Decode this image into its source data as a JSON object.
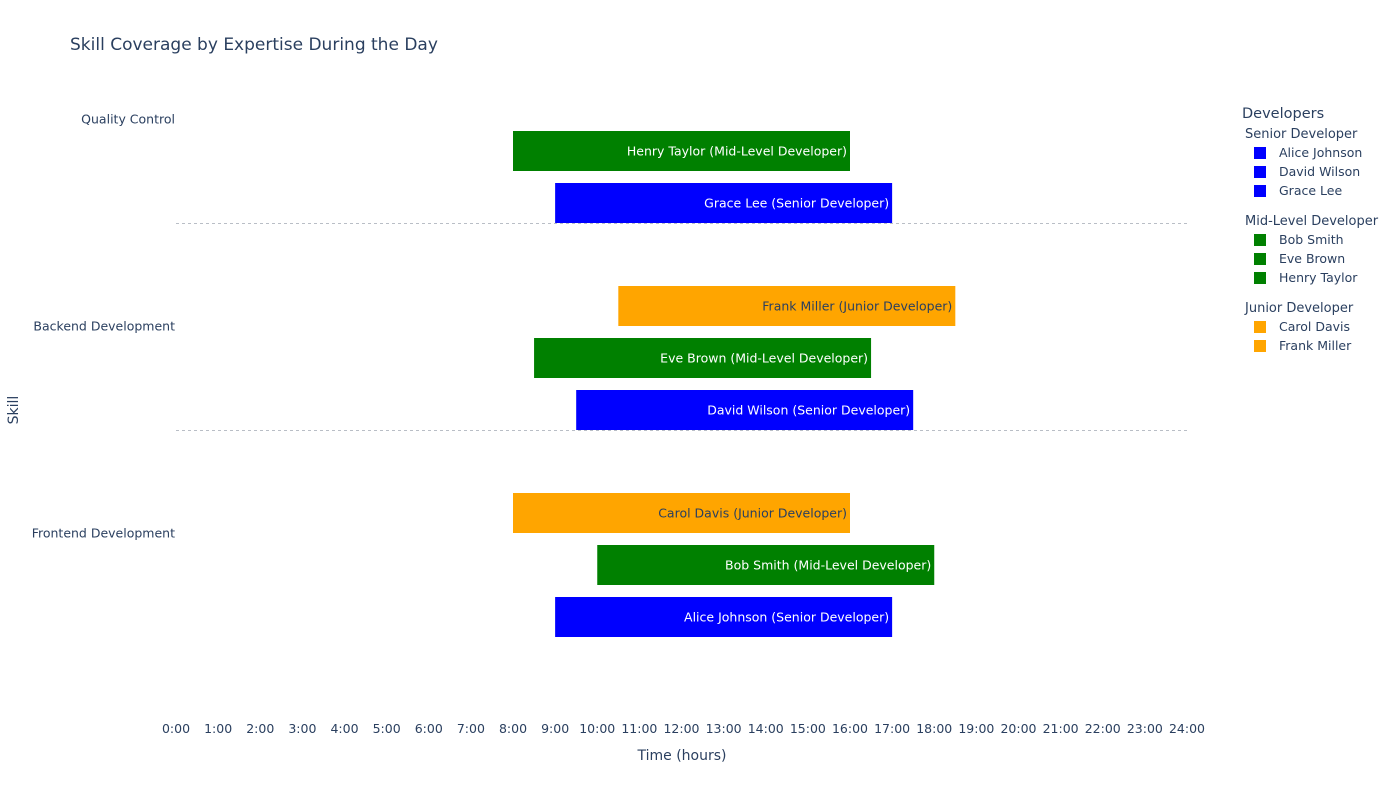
{
  "chart_data": {
    "type": "bar",
    "orientation": "horizontal",
    "title": "Skill Coverage by Expertise During the Day",
    "xlabel": "Time (hours)",
    "ylabel": "Skill",
    "xlim": [
      0,
      24
    ],
    "x_ticks": [
      "0:00",
      "1:00",
      "2:00",
      "3:00",
      "4:00",
      "5:00",
      "6:00",
      "7:00",
      "8:00",
      "9:00",
      "10:00",
      "11:00",
      "12:00",
      "13:00",
      "14:00",
      "15:00",
      "16:00",
      "17:00",
      "18:00",
      "19:00",
      "20:00",
      "21:00",
      "22:00",
      "23:00",
      "24:00"
    ],
    "categories": [
      "Frontend Development",
      "Backend Development",
      "Quality Control"
    ],
    "grid": false,
    "legend_position": "right",
    "levels": {
      "Senior Developer": "#0000ff",
      "Mid-Level Developer": "#008000",
      "Junior Developer": "#ffa500"
    },
    "series": [
      {
        "skill": "Frontend Development",
        "developer": "Alice Johnson",
        "level": "Senior Developer",
        "start": 9,
        "end": 17,
        "label": "Alice Johnson (Senior Developer)"
      },
      {
        "skill": "Frontend Development",
        "developer": "Bob Smith",
        "level": "Mid-Level Developer",
        "start": 10,
        "end": 18,
        "label": "Bob Smith (Mid-Level Developer)"
      },
      {
        "skill": "Frontend Development",
        "developer": "Carol Davis",
        "level": "Junior Developer",
        "start": 8,
        "end": 16,
        "label": "Carol Davis (Junior Developer)"
      },
      {
        "skill": "Backend Development",
        "developer": "David Wilson",
        "level": "Senior Developer",
        "start": 9.5,
        "end": 17.5,
        "label": "David Wilson (Senior Developer)"
      },
      {
        "skill": "Backend Development",
        "developer": "Eve Brown",
        "level": "Mid-Level Developer",
        "start": 8.5,
        "end": 16.5,
        "label": "Eve Brown (Mid-Level Developer)"
      },
      {
        "skill": "Backend Development",
        "developer": "Frank Miller",
        "level": "Junior Developer",
        "start": 10.5,
        "end": 18.5,
        "label": "Frank Miller (Junior Developer)"
      },
      {
        "skill": "Quality Control",
        "developer": "Grace Lee",
        "level": "Senior Developer",
        "start": 9,
        "end": 17,
        "label": "Grace Lee (Senior Developer)"
      },
      {
        "skill": "Quality Control",
        "developer": "Henry Taylor",
        "level": "Mid-Level Developer",
        "start": 8,
        "end": 16,
        "label": "Henry Taylor (Mid-Level Developer)"
      }
    ],
    "legend": {
      "title": "Developers",
      "groups": [
        {
          "name": "Senior Developer",
          "color": "#0000ff",
          "items": [
            "Alice Johnson",
            "David Wilson",
            "Grace Lee"
          ]
        },
        {
          "name": "Mid-Level Developer",
          "color": "#008000",
          "items": [
            "Bob Smith",
            "Eve Brown",
            "Henry Taylor"
          ]
        },
        {
          "name": "Junior Developer",
          "color": "#ffa500",
          "items": [
            "Carol Davis",
            "Frank Miller"
          ]
        }
      ]
    }
  }
}
